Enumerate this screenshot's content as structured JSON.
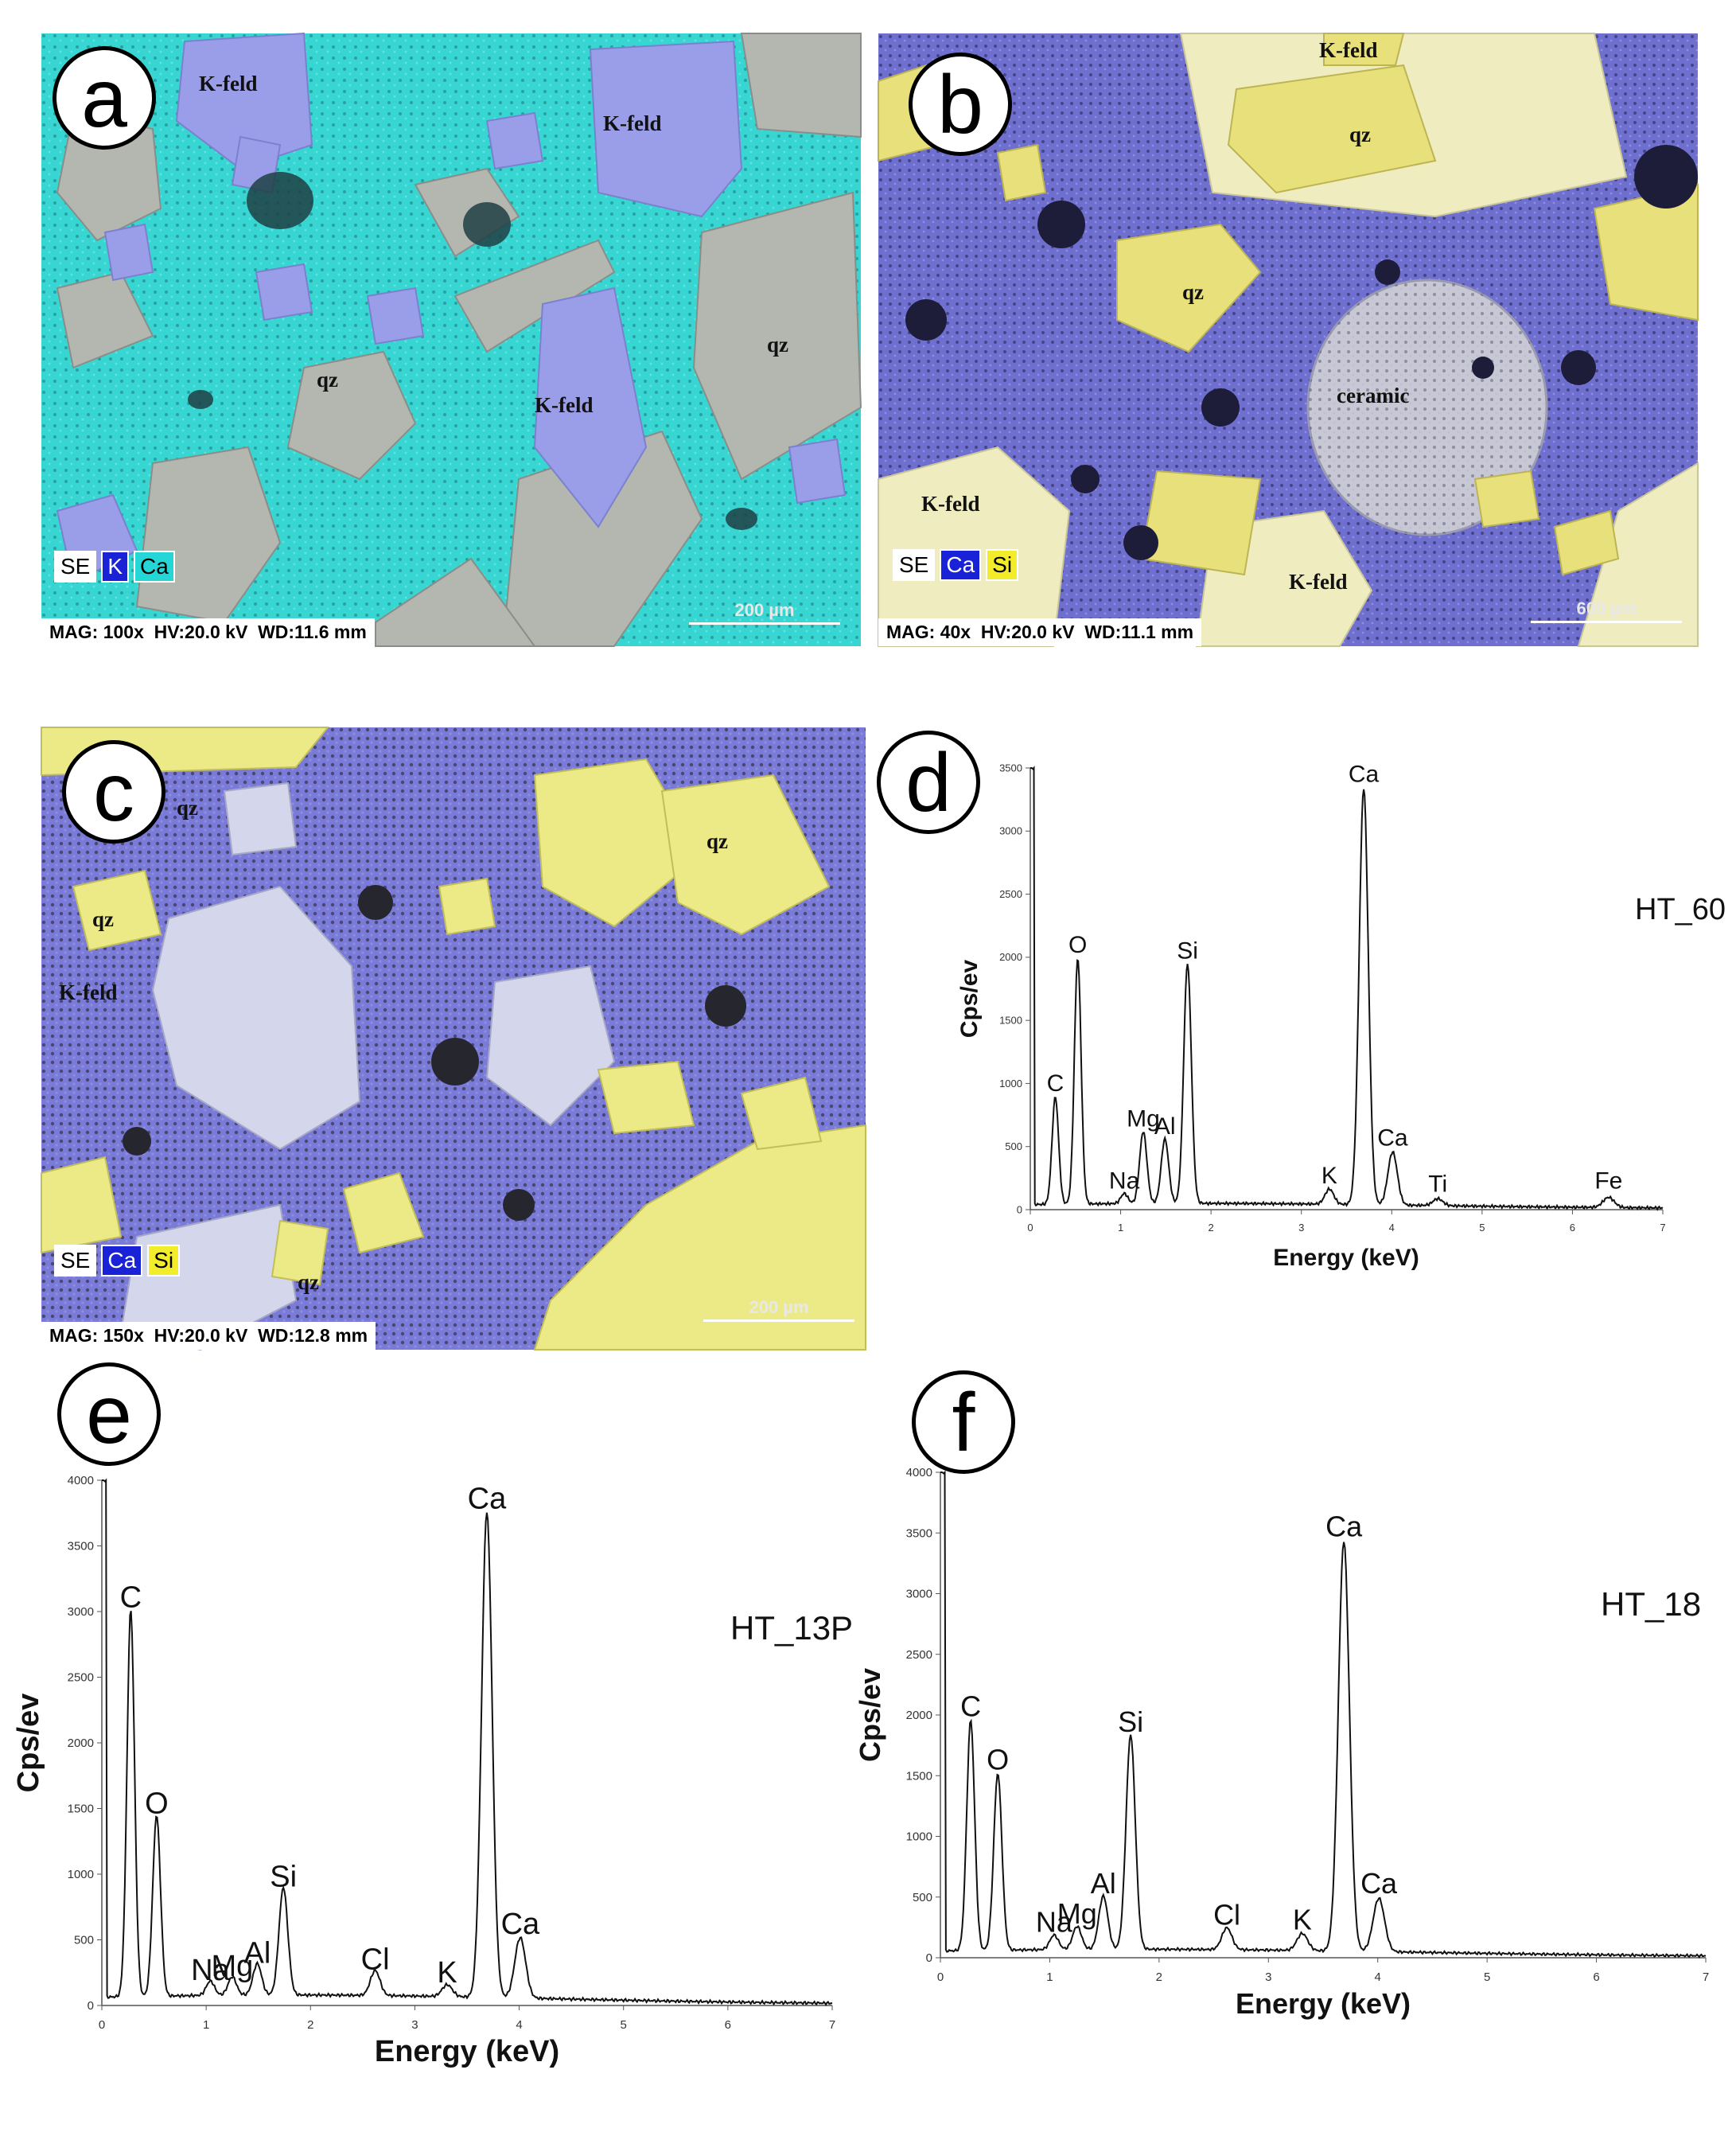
{
  "panels": {
    "a": {
      "letter": "a",
      "mineral_labels": [
        "K-feld",
        "K-feld",
        "qz",
        "qz",
        "K-feld"
      ],
      "legend": [
        {
          "text": "SE",
          "bg": "#ffffff",
          "fg": "#000000"
        },
        {
          "text": "K",
          "bg": "#1a22d8",
          "fg": "#ffffff"
        },
        {
          "text": "Ca",
          "bg": "#24d6d6",
          "fg": "#000000"
        }
      ],
      "info": "MAG: 100x  HV:20.0 kV  WD:11.6 mm",
      "scale": "200 µm",
      "colors": {
        "matrix": "#38d6d2",
        "kfeld": "#9a9ee8",
        "quartz": "#b4b6b0",
        "dark": "#1f3f44"
      }
    },
    "b": {
      "letter": "b",
      "mineral_labels": [
        "K-feld",
        "qz",
        "qz",
        "ceramic",
        "K-feld",
        "K-feld"
      ],
      "legend": [
        {
          "text": "SE",
          "bg": "#ffffff",
          "fg": "#000000"
        },
        {
          "text": "Ca",
          "bg": "#1a22d8",
          "fg": "#ffffff"
        },
        {
          "text": "Si",
          "bg": "#f2ec2a",
          "fg": "#000000"
        }
      ],
      "info": "MAG: 40x  HV:20.0 kV  WD:11.1 mm",
      "scale": "600 µm",
      "colors": {
        "matrix": "#6f6fd0",
        "quartz": "#e8e07a",
        "kfeld": "#efedc0",
        "dark": "#1d1d3a"
      }
    },
    "c": {
      "letter": "c",
      "mineral_labels": [
        "qz",
        "qz",
        "qz",
        "K-feld",
        "qz"
      ],
      "legend": [
        {
          "text": "SE",
          "bg": "#ffffff",
          "fg": "#000000"
        },
        {
          "text": "Ca",
          "bg": "#1a22d8",
          "fg": "#ffffff"
        },
        {
          "text": "Si",
          "bg": "#f2ec2a",
          "fg": "#000000"
        }
      ],
      "info": "MAG: 150x  HV:20.0 kV  WD:12.8 mm",
      "scale": "200 µm",
      "colors": {
        "matrix": "#7a7ad8",
        "quartz": "#ecea86",
        "pale": "#d4d6ec",
        "dark": "#26262e"
      }
    },
    "d": {
      "letter": "d"
    },
    "e": {
      "letter": "e"
    },
    "f": {
      "letter": "f"
    }
  },
  "chart_data": [
    {
      "id": "d",
      "type": "line",
      "title": "HT_60",
      "xlabel": "Energy (keV)",
      "ylabel": "Cps/ev",
      "xlim": [
        0,
        7
      ],
      "ylim": [
        0,
        3500
      ],
      "xticks": [
        0,
        1,
        2,
        3,
        4,
        5,
        6,
        7
      ],
      "yticks": [
        0,
        500,
        1000,
        1500,
        2000,
        2500,
        3000,
        3500
      ],
      "baseline": 40,
      "peaks": [
        {
          "label": "C",
          "energy": 0.277,
          "counts": 850
        },
        {
          "label": "O",
          "energy": 0.525,
          "counts": 1950
        },
        {
          "label": "Na",
          "energy": 1.04,
          "counts": 80
        },
        {
          "label": "Mg",
          "energy": 1.25,
          "counts": 570
        },
        {
          "label": "Al",
          "energy": 1.49,
          "counts": 510
        },
        {
          "label": "Si",
          "energy": 1.74,
          "counts": 1900
        },
        {
          "label": "K",
          "energy": 3.31,
          "counts": 120
        },
        {
          "label": "Ca",
          "energy": 3.69,
          "counts": 3300
        },
        {
          "label": "Ca",
          "energy": 4.01,
          "counts": 420
        },
        {
          "label": "Ti",
          "energy": 4.51,
          "counts": 55
        },
        {
          "label": "Fe",
          "energy": 6.4,
          "counts": 80
        }
      ]
    },
    {
      "id": "e",
      "type": "line",
      "title": "HT_13P",
      "xlabel": "Energy (keV)",
      "ylabel": "Cps/ev",
      "xlim": [
        0,
        7
      ],
      "ylim": [
        0,
        4000
      ],
      "xticks": [
        0,
        1,
        2,
        3,
        4,
        5,
        6,
        7
      ],
      "yticks": [
        0,
        500,
        1000,
        1500,
        2000,
        2500,
        3000,
        3500,
        4000
      ],
      "baseline": 70,
      "peaks": [
        {
          "label": "C",
          "energy": 0.277,
          "counts": 2950
        },
        {
          "label": "O",
          "energy": 0.525,
          "counts": 1380
        },
        {
          "label": "Na",
          "energy": 1.04,
          "counts": 110
        },
        {
          "label": "Mg",
          "energy": 1.25,
          "counts": 140
        },
        {
          "label": "Al",
          "energy": 1.49,
          "counts": 240
        },
        {
          "label": "Si",
          "energy": 1.74,
          "counts": 820
        },
        {
          "label": "Cl",
          "energy": 2.62,
          "counts": 190
        },
        {
          "label": "K",
          "energy": 3.31,
          "counts": 90
        },
        {
          "label": "Ca",
          "energy": 3.69,
          "counts": 3700
        },
        {
          "label": "Ca",
          "energy": 4.01,
          "counts": 460
        }
      ]
    },
    {
      "id": "f",
      "type": "line",
      "title": "HT_18",
      "xlabel": "Energy (keV)",
      "ylabel": "Cps/ev",
      "xlim": [
        0,
        7
      ],
      "ylim": [
        0,
        4000
      ],
      "xticks": [
        0,
        1,
        2,
        3,
        4,
        5,
        6,
        7
      ],
      "yticks": [
        0,
        500,
        1000,
        1500,
        2000,
        2500,
        3000,
        3500,
        4000
      ],
      "baseline": 60,
      "peaks": [
        {
          "label": "C",
          "energy": 0.277,
          "counts": 1900
        },
        {
          "label": "O",
          "energy": 0.525,
          "counts": 1460
        },
        {
          "label": "Na",
          "energy": 1.04,
          "counts": 120
        },
        {
          "label": "Mg",
          "energy": 1.25,
          "counts": 190
        },
        {
          "label": "Al",
          "energy": 1.49,
          "counts": 440
        },
        {
          "label": "Si",
          "energy": 1.74,
          "counts": 1770
        },
        {
          "label": "Cl",
          "energy": 2.62,
          "counts": 180
        },
        {
          "label": "K",
          "energy": 3.31,
          "counts": 140
        },
        {
          "label": "Ca",
          "energy": 3.69,
          "counts": 3380
        },
        {
          "label": "Ca",
          "energy": 4.01,
          "counts": 440
        }
      ]
    }
  ]
}
